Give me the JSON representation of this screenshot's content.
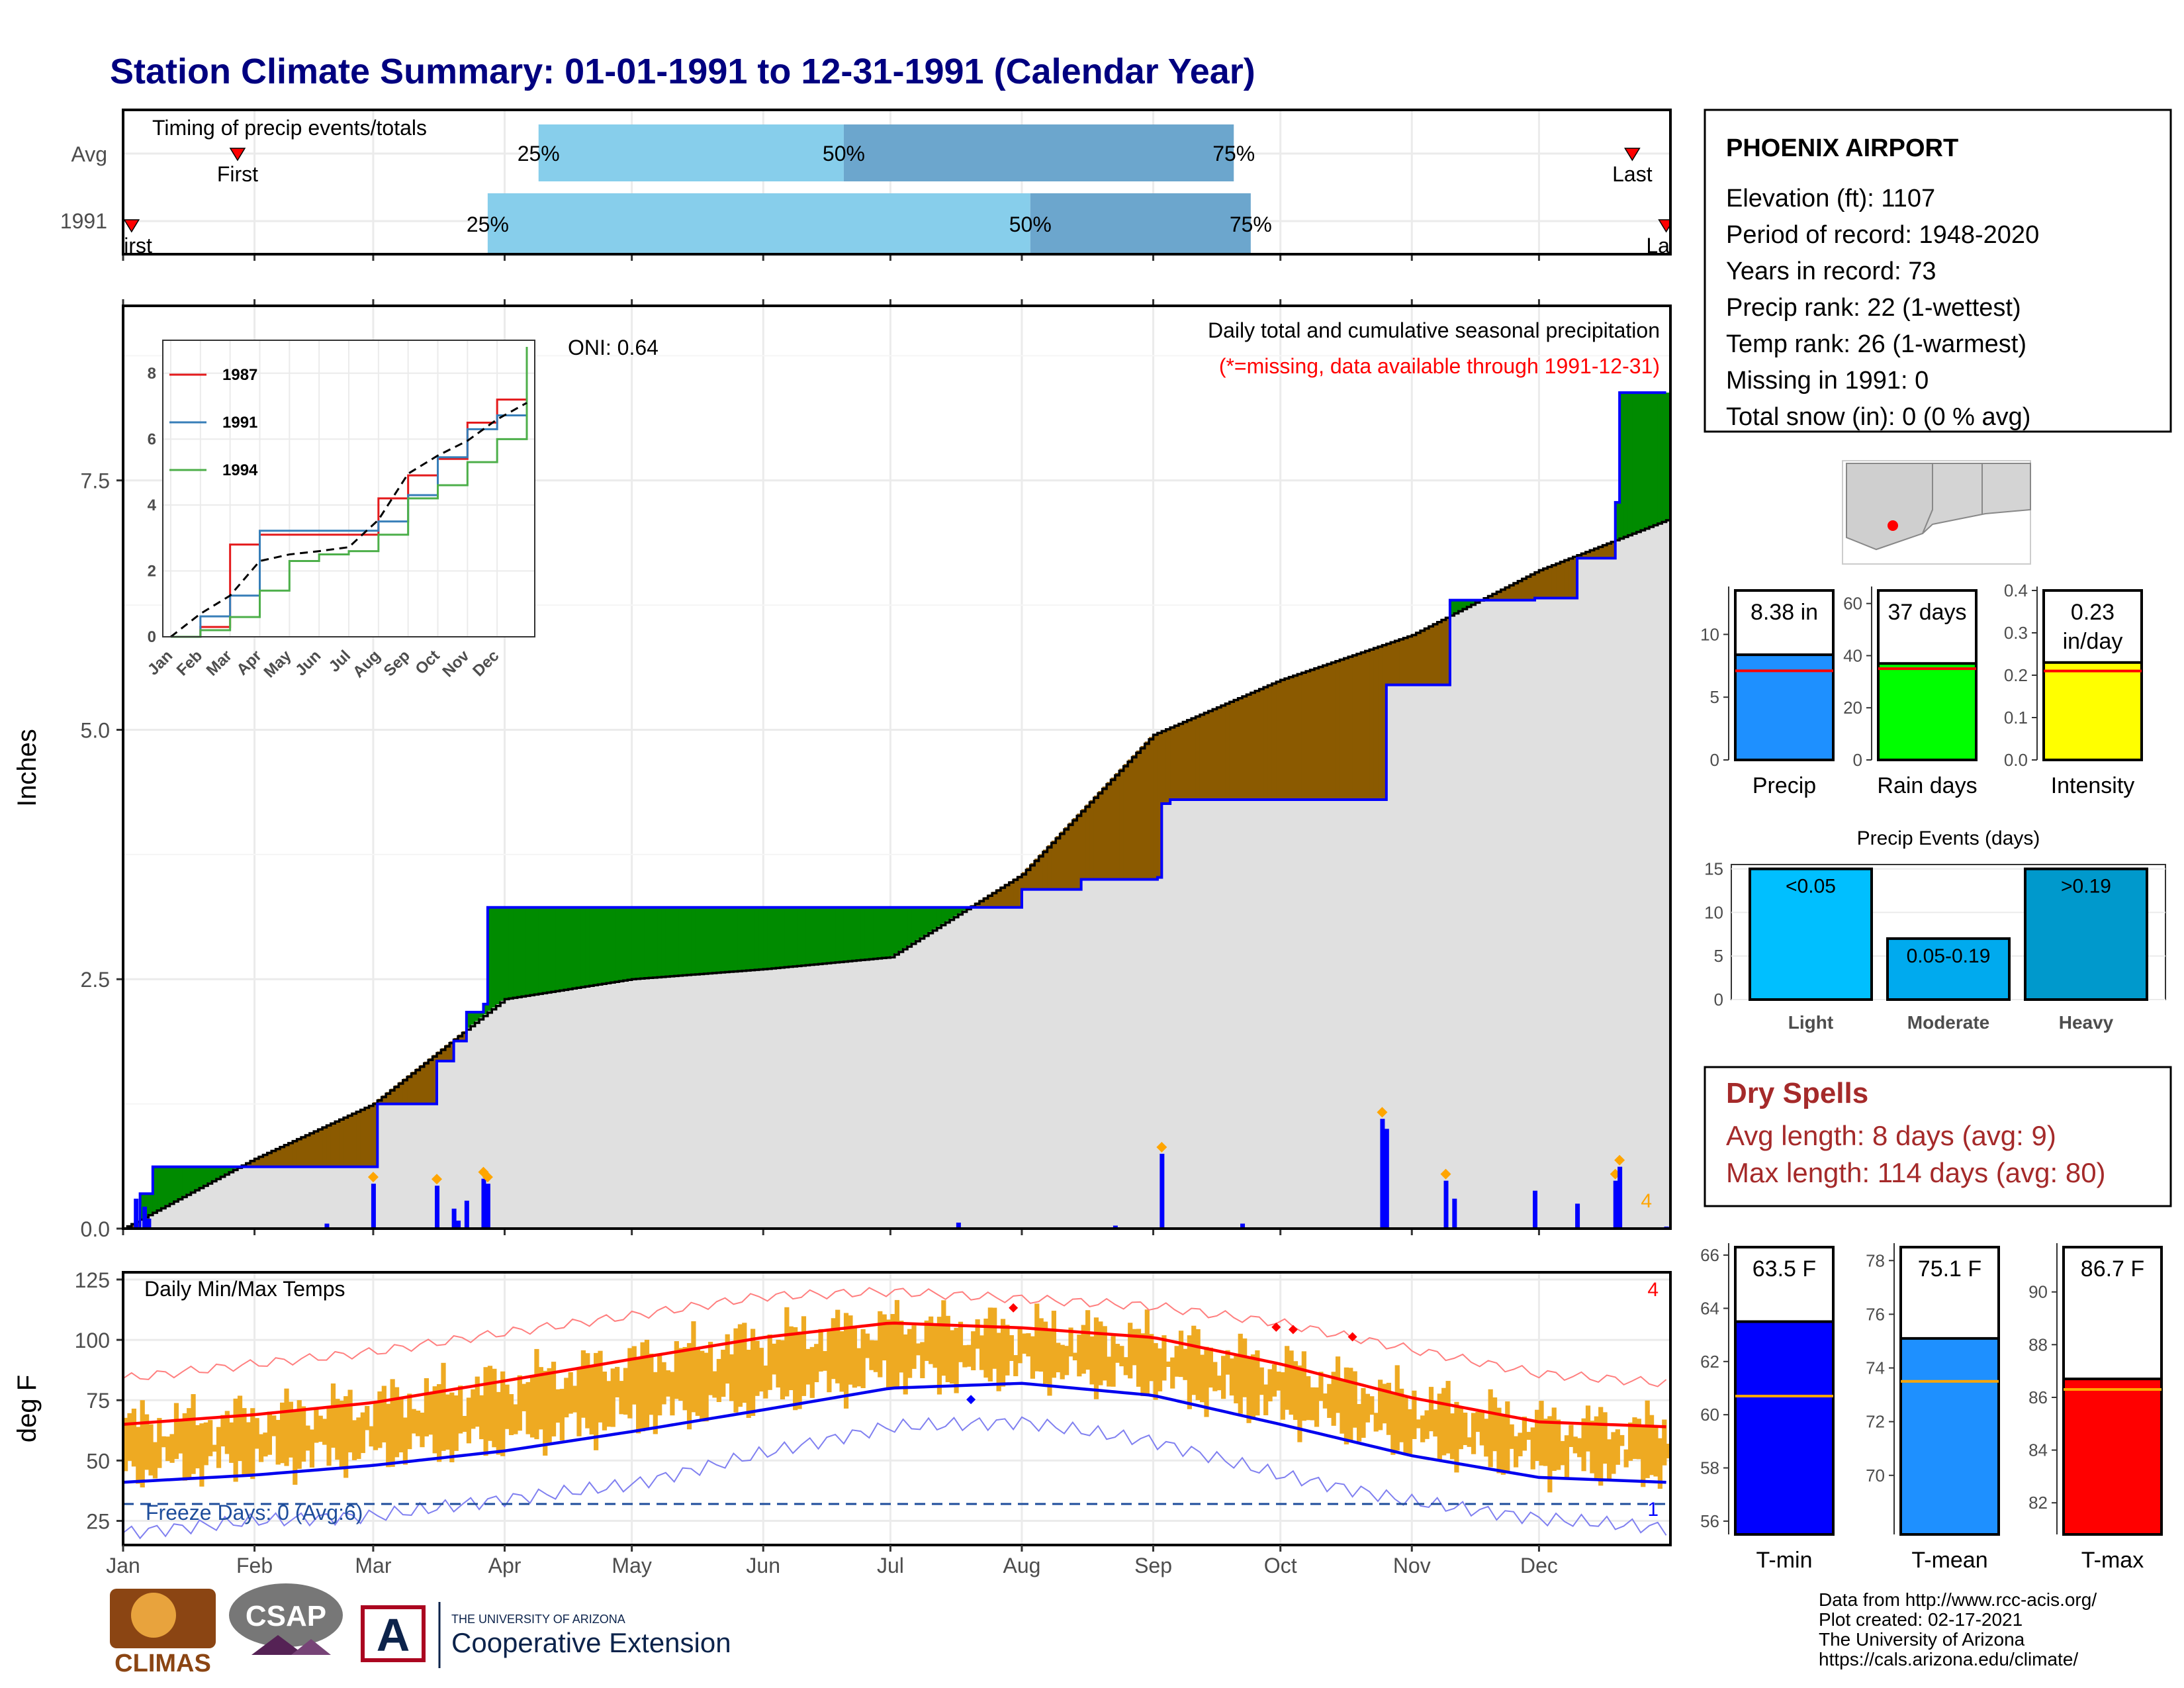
{
  "title": "Station Climate Summary: 01-01-1991 to 12-31-1991 (Calendar Year)",
  "timing": {
    "title": "Timing of precip events/totals",
    "rows": [
      {
        "label": "Avg",
        "first_date": "1991-01-28",
        "first_text": "First",
        "last_date": "1991-12-23",
        "last_text": "Last",
        "p25": "1991-04-09",
        "p50": "1991-06-20",
        "p75": "1991-09-20"
      },
      {
        "label": "1991",
        "first_date": "1991-01-03",
        "first_text": "First",
        "last_date": "1991-12-31",
        "last_text": "Last",
        "p25": "1991-03-28",
        "p50": "1991-08-03",
        "p75": "1991-09-24"
      }
    ],
    "pct_labels": [
      "25%",
      "50%",
      "75%"
    ]
  },
  "station": {
    "name": "PHOENIX AIRPORT",
    "lines": [
      "Elevation (ft): 1107",
      "Period of record: 1948-2020",
      "Years in record: 73",
      "Precip rank: 22 (1-wettest)",
      "Temp rank: 26 (1-warmest)",
      "Missing in 1991: 0",
      "Total snow (in): 0 (0 % avg)"
    ]
  },
  "precip_panel": {
    "ylabel": "Inches",
    "title": "Daily total and cumulative seasonal precipitation",
    "note": "(*=missing, data available through 1991-12-31)",
    "oni": "ONI: 0.64",
    "count_label": "4",
    "yticks": [
      "0.0",
      "2.5",
      "5.0",
      "7.5"
    ]
  },
  "temp_panel": {
    "ylabel": "deg F",
    "title": "Daily Min/Max Temps",
    "yticks": [
      "25",
      "50",
      "75",
      "100",
      "125"
    ],
    "freeze_label": "Freeze Days: 0 (Avg:6)",
    "count_high": "4",
    "count_low": "1"
  },
  "months": [
    "Jan",
    "Feb",
    "Mar",
    "Apr",
    "May",
    "Jun",
    "Jul",
    "Aug",
    "Sep",
    "Oct",
    "Nov",
    "Dec"
  ],
  "inset": {
    "months": [
      "Jan",
      "Feb",
      "Mar",
      "Apr",
      "May",
      "Jun",
      "Jul",
      "Aug",
      "Sep",
      "Oct",
      "Nov",
      "Dec"
    ],
    "yticks": [
      "0",
      "2",
      "4",
      "6",
      "8"
    ],
    "legend": [
      "1987",
      "1991",
      "1994"
    ]
  },
  "bars_top": [
    {
      "name": "Precip",
      "label": "8.38 in",
      "yticks": [
        "0",
        "5",
        "10"
      ]
    },
    {
      "name": "Rain days",
      "label": "37 days",
      "yticks": [
        "0",
        "20",
        "40",
        "60"
      ]
    },
    {
      "name": "Intensity",
      "label": "0.23\nin/day",
      "yticks": [
        "0.0",
        "0.1",
        "0.2",
        "0.3",
        "0.4"
      ]
    }
  ],
  "events": {
    "title": "Precip Events (days)",
    "yticks": [
      "0",
      "5",
      "10",
      "15"
    ],
    "bars": [
      {
        "cat": "Light",
        "label": "<0.05"
      },
      {
        "cat": "Moderate",
        "label": "0.05-0.19"
      },
      {
        "cat": "Heavy",
        "label": ">0.19"
      }
    ]
  },
  "dry_spells": {
    "title": "Dry Spells",
    "avg": "Avg length: 8 days (avg: 9)",
    "max": "Max length: 114 days (avg: 80)"
  },
  "temp_bars": [
    {
      "name": "T-min",
      "label": "63.5 F",
      "yticks": [
        "56",
        "58",
        "60",
        "62",
        "64",
        "66"
      ]
    },
    {
      "name": "T-mean",
      "label": "75.1 F",
      "yticks": [
        "70",
        "72",
        "74",
        "76",
        "78"
      ]
    },
    {
      "name": "T-max",
      "label": "86.7 F",
      "yticks": [
        "82",
        "84",
        "86",
        "88",
        "90"
      ]
    }
  ],
  "footer": {
    "credits": [
      "Data from http://www.rcc-acis.org/",
      "Plot created: 02-17-2021",
      "The University of Arizona",
      "https://cals.arizona.edu/climate/"
    ],
    "logo_climas": "CLIMAS",
    "logo_csap": "CSAP",
    "logo_ua_small": "THE UNIVERSITY OF ARIZONA",
    "logo_ua_big": "Cooperative Extension"
  },
  "colors": {
    "title": "#000080",
    "bar_light": "#87CEEB",
    "bar_dark": "#6CA6CD",
    "above": "#008B00",
    "below": "#8B5A00",
    "fill": "#E0E0E0",
    "obs": "#0000FF",
    "tband": "#EEAA22",
    "tmax": "#FF0000",
    "tmin": "#0000EE",
    "precip_bar": "#1E90FF",
    "rain_bar": "#00FF00",
    "int_bar": "#FFFF00",
    "light": "#00BFFF",
    "moderate": "#00AAEE",
    "heavy": "#0099CC",
    "dry": "#A52A2A",
    "tmin_bar": "#0000FF",
    "tmean_bar": "#1E90FF",
    "tmaxbar": "#FF0000"
  },
  "chart_data": [
    {
      "type": "line",
      "title": "Daily total and cumulative seasonal precipitation",
      "ylabel": "Inches",
      "ylim": [
        0,
        9
      ],
      "series": [
        {
          "name": "1991",
          "x": [
            "1991-01-01",
            "1991-01-05",
            "1991-01-08",
            "1991-02-01",
            "1991-03-01",
            "1991-03-02",
            "1991-03-16",
            "1991-03-20",
            "1991-03-23",
            "1991-03-27",
            "1991-03-28",
            "1991-07-17",
            "1991-08-01",
            "1991-08-15",
            "1991-09-02",
            "1991-09-03",
            "1991-09-05",
            "1991-10-25",
            "1991-10-26",
            "1991-11-09",
            "1991-11-10",
            "1991-11-30",
            "1991-12-10",
            "1991-12-19",
            "1991-12-20",
            "1991-12-31"
          ],
          "y": [
            0.0,
            0.35,
            0.62,
            0.62,
            0.62,
            1.25,
            1.68,
            1.88,
            2.17,
            2.25,
            3.22,
            3.22,
            3.4,
            3.5,
            3.52,
            4.26,
            4.3,
            4.3,
            5.45,
            5.45,
            6.3,
            6.32,
            6.72,
            7.28,
            8.38,
            8.38
          ]
        },
        {
          "name": "Avg",
          "x": [
            "1991-01-01",
            "1991-02-01",
            "1991-03-01",
            "1991-04-01",
            "1991-05-01",
            "1991-06-01",
            "1991-07-01",
            "1991-08-01",
            "1991-09-01",
            "1991-10-01",
            "1991-11-01",
            "1991-12-01",
            "1991-12-31"
          ],
          "y": [
            0.0,
            0.7,
            1.25,
            2.3,
            2.5,
            2.6,
            2.72,
            3.55,
            4.95,
            5.5,
            5.95,
            6.6,
            7.1
          ]
        }
      ],
      "daily_totals": {
        "x": [
          "1991-01-04",
          "1991-01-06",
          "1991-01-07",
          "1991-02-18",
          "1991-03-01",
          "1991-03-16",
          "1991-03-20",
          "1991-03-21",
          "1991-03-23",
          "1991-03-27",
          "1991-03-28",
          "1991-07-17",
          "1991-08-23",
          "1991-09-03",
          "1991-09-22",
          "1991-10-25",
          "1991-10-26",
          "1991-11-09",
          "1991-11-11",
          "1991-11-30",
          "1991-12-10",
          "1991-12-19",
          "1991-12-20",
          "1991-12-31"
        ],
        "y": [
          0.3,
          0.22,
          0.1,
          0.05,
          0.45,
          0.43,
          0.2,
          0.08,
          0.28,
          0.5,
          0.45,
          0.06,
          0.03,
          0.75,
          0.05,
          1.1,
          1.0,
          0.48,
          0.3,
          0.38,
          0.25,
          0.48,
          0.62,
          0.02
        ]
      }
    },
    {
      "type": "line",
      "title": "Daily Min/Max Temps",
      "ylabel": "deg F",
      "ylim": [
        15,
        128
      ],
      "series": [
        {
          "name": "Avg max",
          "x": [
            "1991-01-01",
            "1991-02-01",
            "1991-03-01",
            "1991-04-01",
            "1991-05-01",
            "1991-06-01",
            "1991-07-01",
            "1991-08-01",
            "1991-09-01",
            "1991-10-01",
            "1991-11-01",
            "1991-12-01",
            "1991-12-31"
          ],
          "y": [
            65,
            69,
            74,
            83,
            92,
            101,
            107,
            105,
            101,
            90,
            76,
            66,
            64
          ]
        },
        {
          "name": "Avg min",
          "x": [
            "1991-01-01",
            "1991-02-01",
            "1991-03-01",
            "1991-04-01",
            "1991-05-01",
            "1991-06-01",
            "1991-07-01",
            "1991-08-01",
            "1991-09-01",
            "1991-10-01",
            "1991-11-01",
            "1991-12-01",
            "1991-12-31"
          ],
          "y": [
            41,
            44,
            48,
            54,
            62,
            71,
            80,
            82,
            77,
            65,
            52,
            43,
            41
          ]
        },
        {
          "name": "Record max",
          "x": [
            "1991-01-01",
            "1991-02-01",
            "1991-03-01",
            "1991-04-01",
            "1991-05-01",
            "1991-06-01",
            "1991-07-01",
            "1991-08-01",
            "1991-09-01",
            "1991-10-01",
            "1991-11-01",
            "1991-12-01",
            "1991-12-31"
          ],
          "y": [
            84,
            90,
            95,
            103,
            110,
            118,
            120,
            117,
            114,
            107,
            96,
            86,
            82
          ]
        },
        {
          "name": "Record min",
          "x": [
            "1991-01-01",
            "1991-02-01",
            "1991-03-01",
            "1991-04-01",
            "1991-05-01",
            "1991-06-01",
            "1991-07-01",
            "1991-08-01",
            "1991-09-01",
            "1991-10-01",
            "1991-11-01",
            "1991-12-01",
            "1991-12-31"
          ],
          "y": [
            20,
            25,
            27,
            34,
            40,
            53,
            64,
            66,
            58,
            44,
            33,
            26,
            22
          ]
        }
      ],
      "freeze_line": 32
    },
    {
      "type": "line",
      "title": "",
      "ylim": [
        0,
        9
      ],
      "series": [
        {
          "name": "1987",
          "x": [
            "Jan",
            "Feb",
            "Mar",
            "Apr",
            "May",
            "Jun",
            "Jul",
            "Aug",
            "Sep",
            "Oct",
            "Nov",
            "Dec",
            "end"
          ],
          "y": [
            0.0,
            0.3,
            2.8,
            3.1,
            3.1,
            3.1,
            3.1,
            4.2,
            4.9,
            5.4,
            6.5,
            7.2,
            8.8
          ]
        },
        {
          "name": "1991",
          "x": [
            "Jan",
            "Feb",
            "Mar",
            "Apr",
            "May",
            "Jun",
            "Jul",
            "Aug",
            "Sep",
            "Oct",
            "Nov",
            "Dec",
            "end"
          ],
          "y": [
            0.0,
            0.62,
            1.25,
            3.22,
            3.22,
            3.22,
            3.22,
            3.5,
            4.3,
            5.45,
            6.3,
            6.72,
            8.38
          ]
        },
        {
          "name": "1994",
          "x": [
            "Jan",
            "Feb",
            "Mar",
            "Apr",
            "May",
            "Jun",
            "Jul",
            "Aug",
            "Sep",
            "Oct",
            "Nov",
            "Dec",
            "end"
          ],
          "y": [
            0.0,
            0.2,
            0.6,
            1.4,
            2.3,
            2.5,
            2.6,
            3.1,
            4.2,
            4.6,
            5.3,
            6.0,
            8.8
          ]
        },
        {
          "name": "Avg",
          "x": [
            "Jan",
            "Feb",
            "Mar",
            "Apr",
            "May",
            "Jun",
            "Jul",
            "Aug",
            "Sep",
            "Oct",
            "Nov",
            "Dec",
            "end"
          ],
          "y": [
            0.0,
            0.7,
            1.25,
            2.3,
            2.5,
            2.6,
            2.72,
            3.55,
            4.95,
            5.5,
            5.95,
            6.6,
            7.1
          ]
        }
      ]
    },
    {
      "type": "bar",
      "categories": [
        "Precip"
      ],
      "values": [
        8.38
      ],
      "avg": 7.1,
      "ylim": [
        0,
        13.5
      ]
    },
    {
      "type": "bar",
      "categories": [
        "Rain days"
      ],
      "values": [
        37
      ],
      "avg": 35,
      "ylim": [
        0,
        65
      ]
    },
    {
      "type": "bar",
      "categories": [
        "Intensity"
      ],
      "values": [
        0.23
      ],
      "avg": 0.21,
      "ylim": [
        0,
        0.4
      ]
    },
    {
      "type": "bar",
      "title": "Precip Events (days)",
      "categories": [
        "Light",
        "Moderate",
        "Heavy"
      ],
      "values": [
        15,
        7,
        15
      ],
      "ylim": [
        0,
        15.5
      ]
    },
    {
      "type": "bar",
      "categories": [
        "T-min"
      ],
      "values": [
        63.5
      ],
      "avg": 60.7,
      "ylim": [
        55.5,
        66.3
      ]
    },
    {
      "type": "bar",
      "categories": [
        "T-mean"
      ],
      "values": [
        75.1
      ],
      "avg": 73.5,
      "ylim": [
        67.8,
        78.5
      ]
    },
    {
      "type": "bar",
      "categories": [
        "T-max"
      ],
      "values": [
        86.7
      ],
      "avg": 86.3,
      "ylim": [
        80.8,
        91.7
      ]
    }
  ]
}
